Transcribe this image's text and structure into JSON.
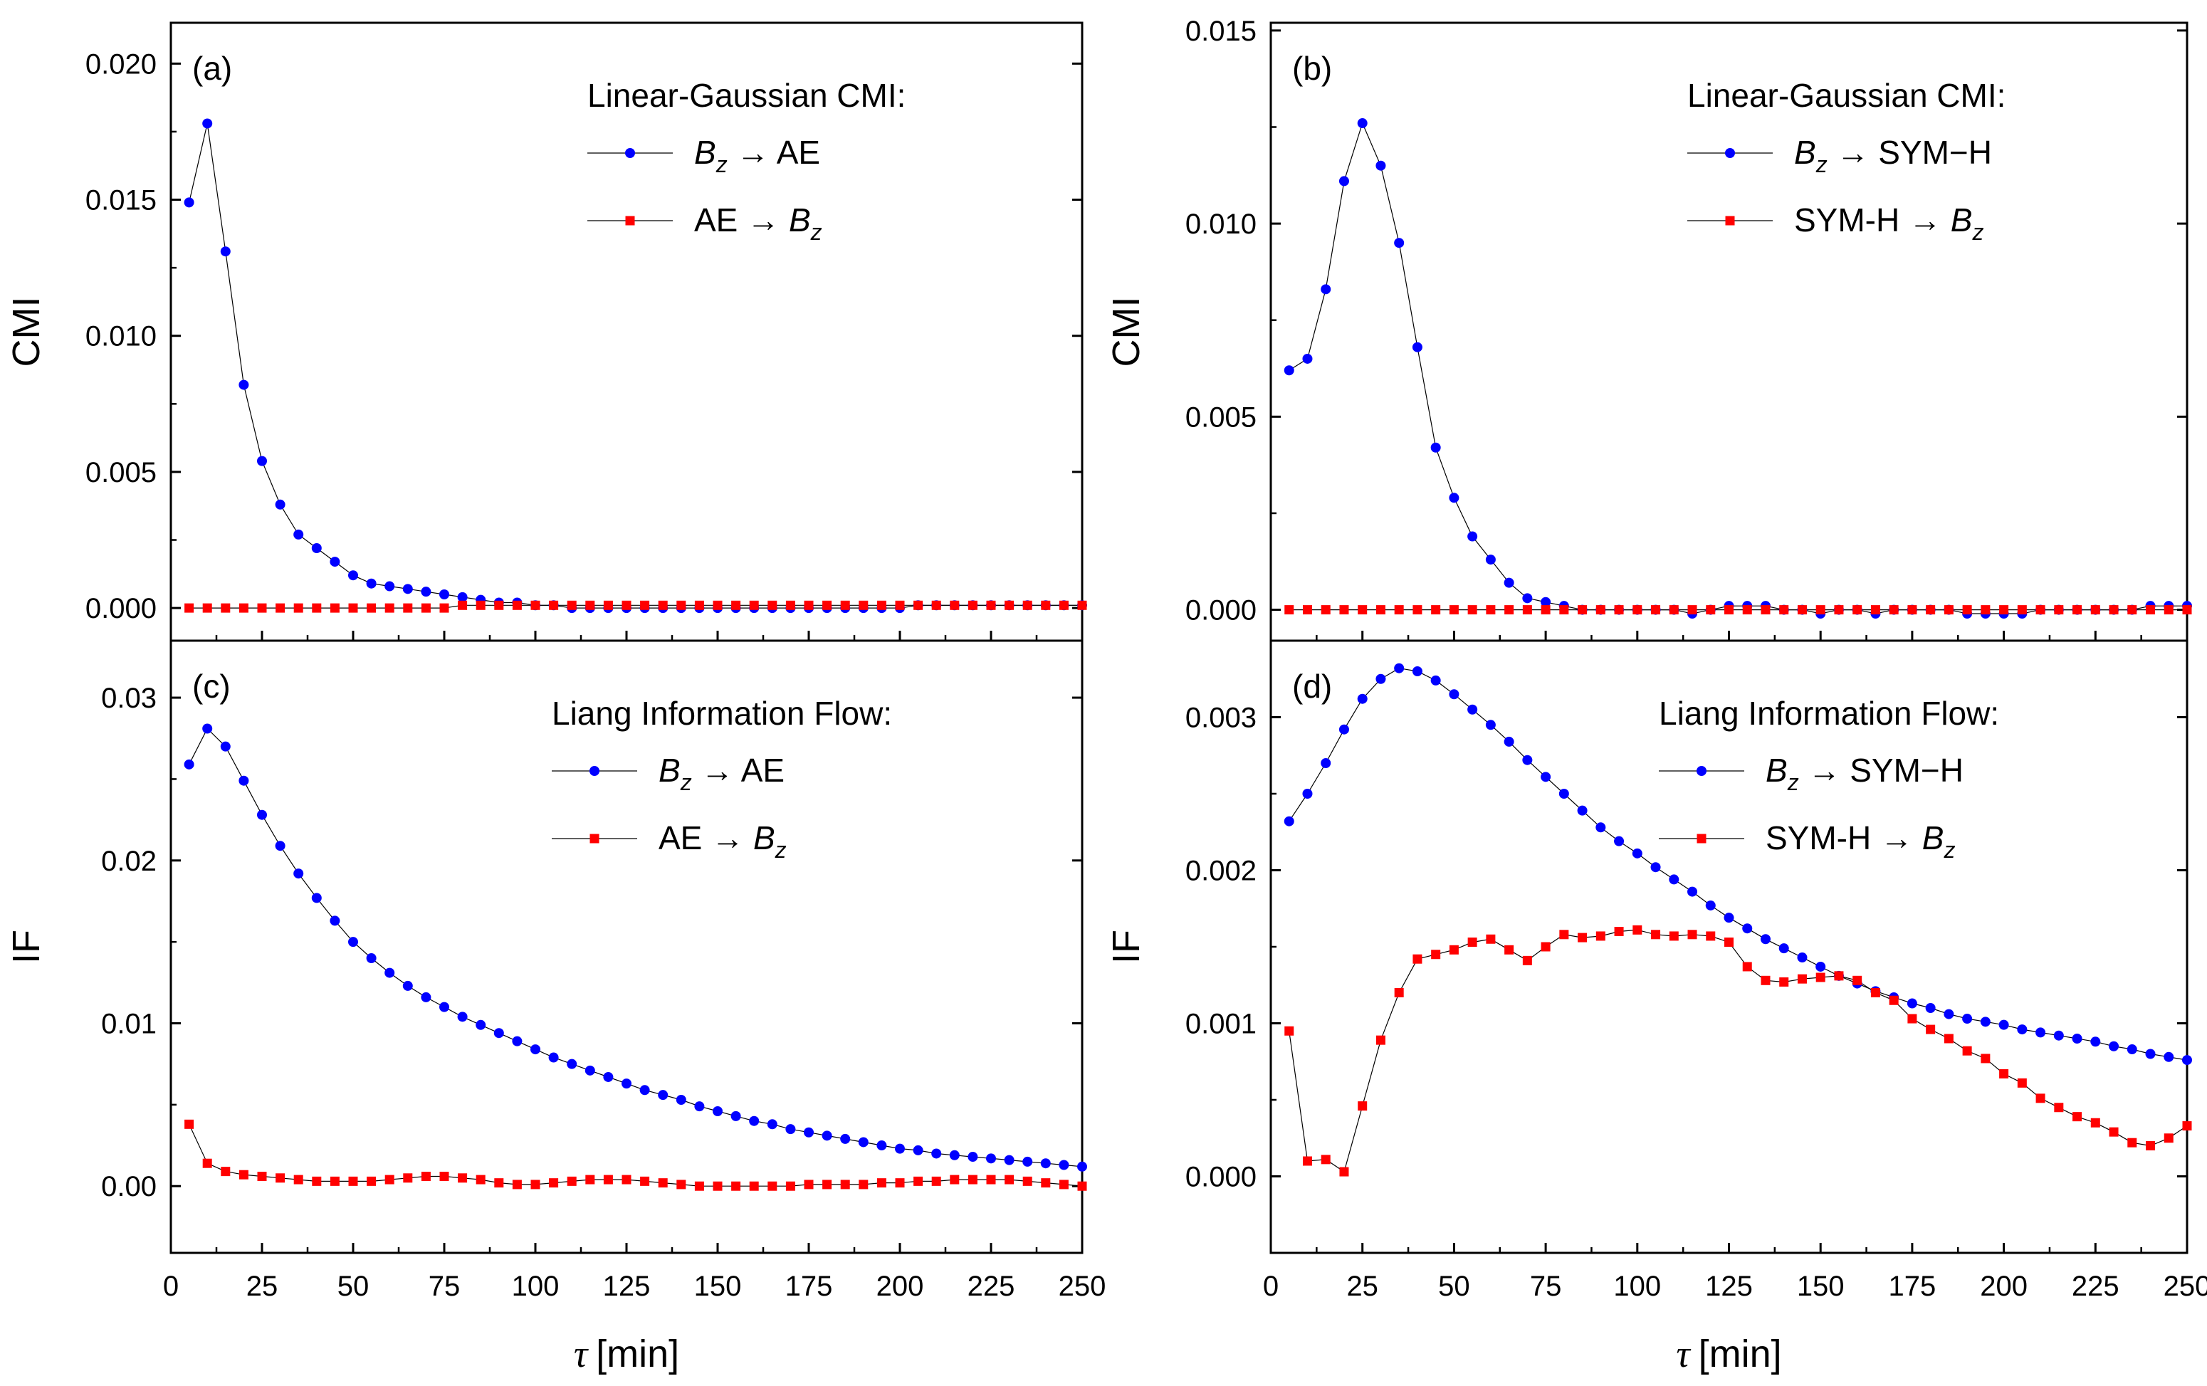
{
  "figure": {
    "xlabel_symbol": "τ",
    "xlabel_unit": "[min]"
  },
  "chart_data": [
    {
      "id": "a",
      "type": "line",
      "panel_label": "(a)",
      "ylabel": "CMI",
      "xlim": [
        0,
        250
      ],
      "ylim": [
        -0.0012,
        0.0215
      ],
      "xticks": [
        "0",
        "25",
        "50",
        "75",
        "100",
        "125",
        "150",
        "175",
        "200",
        "225",
        "250"
      ],
      "yticks": [
        0,
        0.005,
        0.01,
        0.015,
        0.02
      ],
      "ytick_labels": [
        "0.000",
        "0.005",
        "0.010",
        "0.015",
        "0.020"
      ],
      "legend_title": "Linear-Gaussian CMI:",
      "legend_position": "top-right",
      "x": [
        5,
        10,
        15,
        20,
        25,
        30,
        35,
        40,
        45,
        50,
        55,
        60,
        65,
        70,
        75,
        80,
        85,
        90,
        95,
        100,
        105,
        110,
        115,
        120,
        125,
        130,
        135,
        140,
        145,
        150,
        155,
        160,
        165,
        170,
        175,
        180,
        185,
        190,
        195,
        200,
        205,
        210,
        215,
        220,
        225,
        230,
        235,
        240,
        245,
        250
      ],
      "series": [
        {
          "name": "Bz → AE",
          "from": "B",
          "from_sub": "z",
          "to": "AE",
          "to_sub": "",
          "color": "#0000ff",
          "marker": "circle",
          "values": [
            0.0149,
            0.0178,
            0.0131,
            0.0082,
            0.0054,
            0.0038,
            0.0027,
            0.0022,
            0.0017,
            0.0012,
            0.0009,
            0.0008,
            0.0007,
            0.0006,
            0.0005,
            0.0004,
            0.0003,
            0.0002,
            0.0002,
            0.0001,
            0.0001,
            0.0,
            0.0,
            0.0,
            0.0,
            0.0,
            0.0,
            0.0,
            0.0,
            0.0,
            0.0,
            0.0,
            0.0,
            0.0,
            0.0,
            0.0,
            0.0,
            0.0,
            0.0,
            0.0,
            0.0001,
            0.0001,
            0.0001,
            0.0001,
            0.0001,
            0.0001,
            0.0001,
            0.0001,
            0.0001,
            0.0001
          ]
        },
        {
          "name": "AE → Bz",
          "from": "AE",
          "from_sub": "",
          "to": "B",
          "to_sub": "z",
          "color": "#ff0000",
          "marker": "square",
          "values": [
            0.0,
            0.0,
            0.0,
            0.0,
            0.0,
            0.0,
            0.0,
            0.0,
            0.0,
            0.0,
            0.0,
            0.0,
            0.0,
            0.0,
            0.0,
            0.0001,
            0.0001,
            0.0001,
            0.0001,
            0.0001,
            0.0001,
            0.0001,
            0.0001,
            0.0001,
            0.0001,
            0.0001,
            0.0001,
            0.0001,
            0.0001,
            0.0001,
            0.0001,
            0.0001,
            0.0001,
            0.0001,
            0.0001,
            0.0001,
            0.0001,
            0.0001,
            0.0001,
            0.0001,
            0.0001,
            0.0001,
            0.0001,
            0.0001,
            0.0001,
            0.0001,
            0.0001,
            0.0001,
            0.0001,
            0.0001
          ]
        }
      ]
    },
    {
      "id": "b",
      "type": "line",
      "panel_label": "(b)",
      "ylabel": "CMI",
      "xlim": [
        0,
        250
      ],
      "ylim": [
        -0.0008,
        0.0152
      ],
      "xticks": [
        "0",
        "25",
        "50",
        "75",
        "100",
        "125",
        "150",
        "175",
        "200",
        "225",
        "250"
      ],
      "yticks": [
        0,
        0.005,
        0.01,
        0.015
      ],
      "ytick_labels": [
        "0.000",
        "0.005",
        "0.010",
        "0.015"
      ],
      "legend_title": "Linear-Gaussian CMI:",
      "legend_position": "top-right",
      "x": [
        5,
        10,
        15,
        20,
        25,
        30,
        35,
        40,
        45,
        50,
        55,
        60,
        65,
        70,
        75,
        80,
        85,
        90,
        95,
        100,
        105,
        110,
        115,
        120,
        125,
        130,
        135,
        140,
        145,
        150,
        155,
        160,
        165,
        170,
        175,
        180,
        185,
        190,
        195,
        200,
        205,
        210,
        215,
        220,
        225,
        230,
        235,
        240,
        245,
        250
      ],
      "series": [
        {
          "name": "Bz → SYM−H",
          "from": "B",
          "from_sub": "z",
          "to": "SYM−H",
          "to_sub": "",
          "color": "#0000ff",
          "marker": "circle",
          "values": [
            0.0062,
            0.0065,
            0.0083,
            0.0111,
            0.0126,
            0.0115,
            0.0095,
            0.0068,
            0.0042,
            0.0029,
            0.0019,
            0.0013,
            0.0007,
            0.0003,
            0.0002,
            0.0001,
            0.0,
            0.0,
            0.0,
            0.0,
            0.0,
            0.0,
            -0.0001,
            0.0,
            0.0001,
            0.0001,
            0.0001,
            0.0,
            0.0,
            -0.0001,
            0.0,
            0.0,
            -0.0001,
            0.0,
            0.0,
            0.0,
            0.0,
            -0.0001,
            -0.0001,
            -0.0001,
            -0.0001,
            0.0,
            0.0,
            0.0,
            0.0,
            0.0,
            0.0,
            0.0001,
            0.0001,
            0.0001
          ]
        },
        {
          "name": "SYM-H → Bz",
          "from": "SYM-H",
          "from_sub": "",
          "to": "B",
          "to_sub": "z",
          "color": "#ff0000",
          "marker": "square",
          "values": [
            0.0,
            0.0,
            0.0,
            0.0,
            0.0,
            0.0,
            0.0,
            0.0,
            0.0,
            0.0,
            0.0,
            0.0,
            0.0,
            0.0,
            0.0,
            0.0,
            0.0,
            0.0,
            0.0,
            0.0,
            0.0,
            0.0,
            0.0,
            0.0,
            0.0,
            0.0,
            0.0,
            0.0,
            0.0,
            0.0,
            0.0,
            0.0,
            0.0,
            0.0,
            0.0,
            0.0,
            0.0,
            0.0,
            0.0,
            0.0,
            0.0,
            0.0,
            0.0,
            0.0,
            0.0,
            0.0,
            0.0,
            0.0,
            0.0,
            0.0
          ]
        }
      ]
    },
    {
      "id": "c",
      "type": "line",
      "panel_label": "(c)",
      "ylabel": "IF",
      "xlim": [
        0,
        250
      ],
      "ylim": [
        -0.0041,
        0.0335
      ],
      "xticks": [
        "0",
        "25",
        "50",
        "75",
        "100",
        "125",
        "150",
        "175",
        "200",
        "225",
        "250"
      ],
      "yticks": [
        0,
        0.01,
        0.02,
        0.03
      ],
      "ytick_labels": [
        "0.00",
        "0.01",
        "0.02",
        "0.03"
      ],
      "legend_title": "Liang Information Flow:",
      "legend_position": "top-right",
      "x": [
        5,
        10,
        15,
        20,
        25,
        30,
        35,
        40,
        45,
        50,
        55,
        60,
        65,
        70,
        75,
        80,
        85,
        90,
        95,
        100,
        105,
        110,
        115,
        120,
        125,
        130,
        135,
        140,
        145,
        150,
        155,
        160,
        165,
        170,
        175,
        180,
        185,
        190,
        195,
        200,
        205,
        210,
        215,
        220,
        225,
        230,
        235,
        240,
        245,
        250
      ],
      "series": [
        {
          "name": "Bz → AE",
          "from": "B",
          "from_sub": "z",
          "to": "AE",
          "to_sub": "",
          "color": "#0000ff",
          "marker": "circle",
          "values": [
            0.0259,
            0.0281,
            0.027,
            0.0249,
            0.0228,
            0.0209,
            0.0192,
            0.0177,
            0.0163,
            0.015,
            0.014,
            0.0131,
            0.0123,
            0.0116,
            0.011,
            0.0104,
            0.0099,
            0.0094,
            0.0089,
            0.0084,
            0.0079,
            0.0075,
            0.0071,
            0.0067,
            0.0063,
            0.0059,
            0.0056,
            0.0053,
            0.0049,
            0.0046,
            0.0043,
            0.004,
            0.0038,
            0.0035,
            0.0033,
            0.0031,
            0.0029,
            0.0027,
            0.0025,
            0.0023,
            0.0022,
            0.002,
            0.0019,
            0.0018,
            0.0017,
            0.0016,
            0.0015,
            0.0014,
            0.0013,
            0.0012
          ]
        },
        {
          "name": "AE → Bz",
          "from": "AE",
          "from_sub": "",
          "to": "B",
          "to_sub": "z",
          "color": "#ff0000",
          "marker": "square",
          "values": [
            0.0038,
            0.0014,
            0.0009,
            0.0007,
            0.0006,
            0.0005,
            0.0004,
            0.0003,
            0.0003,
            0.0003,
            0.0003,
            0.0004,
            0.0005,
            0.0006,
            0.0006,
            0.0005,
            0.0004,
            0.0002,
            0.0001,
            0.0001,
            0.0002,
            0.0003,
            0.0004,
            0.0004,
            0.0004,
            0.0003,
            0.0002,
            0.0001,
            0.0,
            0.0,
            0.0,
            0.0,
            0.0,
            0.0,
            0.0001,
            0.0001,
            0.0001,
            0.0001,
            0.0002,
            0.0002,
            0.0003,
            0.0003,
            0.0004,
            0.0004,
            0.0004,
            0.0004,
            0.0003,
            0.0002,
            0.0001,
            0.0
          ]
        }
      ]
    },
    {
      "id": "d",
      "type": "line",
      "panel_label": "(d)",
      "ylabel": "IF",
      "xlim": [
        0,
        250
      ],
      "ylim": [
        -0.0005,
        0.0035
      ],
      "xticks": [
        "0",
        "25",
        "50",
        "75",
        "100",
        "125",
        "150",
        "175",
        "200",
        "225",
        "250"
      ],
      "yticks": [
        0,
        0.001,
        0.002,
        0.003
      ],
      "ytick_labels": [
        "0.000",
        "0.001",
        "0.002",
        "0.003"
      ],
      "legend_title": "Liang Information Flow:",
      "legend_position": "top-right",
      "x": [
        5,
        10,
        15,
        20,
        25,
        30,
        35,
        40,
        45,
        50,
        55,
        60,
        65,
        70,
        75,
        80,
        85,
        90,
        95,
        100,
        105,
        110,
        115,
        120,
        125,
        130,
        135,
        140,
        145,
        150,
        155,
        160,
        165,
        170,
        175,
        180,
        185,
        190,
        195,
        200,
        205,
        210,
        215,
        220,
        225,
        230,
        235,
        240,
        245,
        250
      ],
      "series": [
        {
          "name": "Bz → SYM−H",
          "from": "B",
          "from_sub": "z",
          "to": "SYM−H",
          "to_sub": "",
          "color": "#0000ff",
          "marker": "circle",
          "values": [
            0.00232,
            0.0025,
            0.0027,
            0.00292,
            0.00312,
            0.00325,
            0.00332,
            0.0033,
            0.00324,
            0.00315,
            0.00305,
            0.00295,
            0.00284,
            0.00272,
            0.00261,
            0.0025,
            0.00239,
            0.00228,
            0.00219,
            0.00211,
            0.00202,
            0.00194,
            0.00186,
            0.00177,
            0.00169,
            0.00162,
            0.00155,
            0.00149,
            0.00143,
            0.00137,
            0.00131,
            0.00126,
            0.00121,
            0.00117,
            0.00113,
            0.0011,
            0.00106,
            0.00103,
            0.00101,
            0.00099,
            0.00096,
            0.00094,
            0.00092,
            0.0009,
            0.00088,
            0.00085,
            0.00083,
            0.0008,
            0.00078,
            0.00076
          ]
        },
        {
          "name": "SYM-H → Bz",
          "from": "SYM-H",
          "from_sub": "",
          "to": "B",
          "to_sub": "z",
          "color": "#ff0000",
          "marker": "square",
          "values": [
            0.00095,
            0.0001,
            0.00011,
            3e-05,
            0.00046,
            0.00089,
            0.0012,
            0.00142,
            0.00145,
            0.00148,
            0.00153,
            0.00155,
            0.00148,
            0.00141,
            0.0015,
            0.00158,
            0.00156,
            0.00157,
            0.0016,
            0.00161,
            0.00158,
            0.00157,
            0.00158,
            0.00157,
            0.00153,
            0.00137,
            0.00128,
            0.00127,
            0.00129,
            0.0013,
            0.00131,
            0.00128,
            0.0012,
            0.00115,
            0.00103,
            0.00096,
            0.0009,
            0.00082,
            0.00077,
            0.00067,
            0.00061,
            0.00051,
            0.00045,
            0.00039,
            0.00035,
            0.00029,
            0.00022,
            0.0002,
            0.00025,
            0.00033
          ]
        }
      ]
    }
  ]
}
